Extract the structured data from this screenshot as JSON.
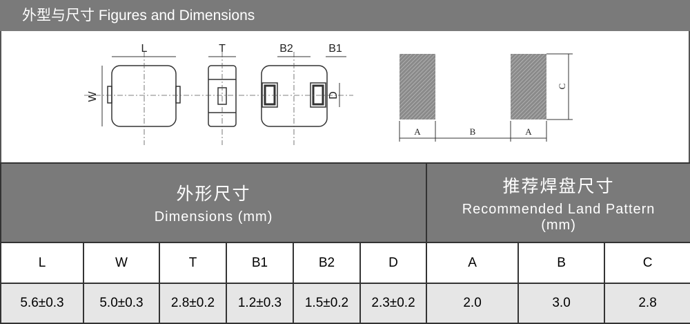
{
  "header": {
    "title": "外型与尺寸 Figures and Dimensions"
  },
  "figure": {
    "component_labels": [
      "L",
      "T",
      "B2",
      "B1",
      "W",
      "D"
    ],
    "land_labels": [
      "A",
      "B",
      "A",
      "C"
    ]
  },
  "table": {
    "groups": [
      {
        "title": "外形尺寸",
        "subtitle": "Dimensions (mm)"
      },
      {
        "title": "推荐焊盘尺寸",
        "subtitle": "Recommended Land Pattern (mm)"
      }
    ],
    "columns": [
      "L",
      "W",
      "T",
      "B1",
      "B2",
      "D",
      "A",
      "B",
      "C"
    ],
    "rows": [
      [
        "5.6±0.3",
        "5.0±0.3",
        "2.8±0.2",
        "1.2±0.3",
        "1.5±0.2",
        "2.3±0.2",
        "2.0",
        "3.0",
        "2.8"
      ]
    ]
  }
}
